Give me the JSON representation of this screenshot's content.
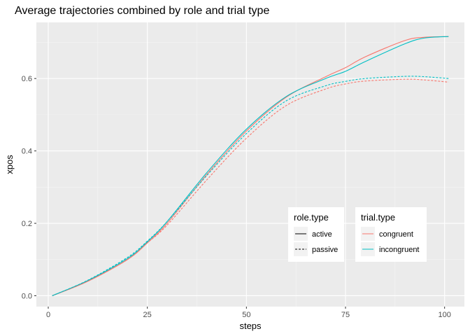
{
  "chart_data": {
    "type": "line",
    "title": "Average trajectories combined by role and trial type",
    "xlabel": "steps",
    "ylabel": "xpos",
    "xlim": [
      -3,
      105
    ],
    "ylim": [
      -0.03,
      0.755
    ],
    "x_ticks": [
      0,
      25,
      50,
      75,
      100
    ],
    "y_ticks": [
      0.0,
      0.2,
      0.4,
      0.6
    ],
    "x_tick_labels": [
      "0",
      "25",
      "50",
      "75",
      "100"
    ],
    "y_tick_labels": [
      "0.0",
      "0.2",
      "0.4",
      "0.6"
    ],
    "grid": true,
    "colors": {
      "congruent": "#F8766D",
      "incongruent": "#00BFC4"
    },
    "legend_placement": "bottom-right",
    "legends": [
      {
        "title": "role.type",
        "entries": [
          {
            "label": "active",
            "linestyle": "solid"
          },
          {
            "label": "passive",
            "linestyle": "dashed"
          }
        ]
      },
      {
        "title": "trial.type",
        "entries": [
          {
            "label": "congruent",
            "color": "#F8766D"
          },
          {
            "label": "incongruent",
            "color": "#00BFC4"
          }
        ]
      }
    ],
    "x": [
      1,
      10,
      20,
      25,
      30,
      40,
      50,
      60,
      70,
      75,
      80,
      90,
      95,
      101
    ],
    "series": [
      {
        "role": "active",
        "trial": "congruent",
        "values": [
          0.0,
          0.04,
          0.1,
          0.146,
          0.2,
          0.335,
          0.455,
          0.548,
          0.605,
          0.63,
          0.66,
          0.705,
          0.714,
          0.716
        ]
      },
      {
        "role": "active",
        "trial": "incongruent",
        "values": [
          0.0,
          0.042,
          0.103,
          0.149,
          0.205,
          0.34,
          0.46,
          0.55,
          0.6,
          0.62,
          0.647,
          0.696,
          0.712,
          0.716
        ]
      },
      {
        "role": "passive",
        "trial": "congruent",
        "values": [
          0.0,
          0.04,
          0.1,
          0.146,
          0.195,
          0.32,
          0.435,
          0.525,
          0.571,
          0.585,
          0.593,
          0.598,
          0.596,
          0.59
        ]
      },
      {
        "role": "passive",
        "trial": "incongruent",
        "values": [
          0.0,
          0.043,
          0.106,
          0.151,
          0.205,
          0.332,
          0.448,
          0.538,
          0.58,
          0.592,
          0.6,
          0.606,
          0.605,
          0.6
        ]
      }
    ]
  }
}
